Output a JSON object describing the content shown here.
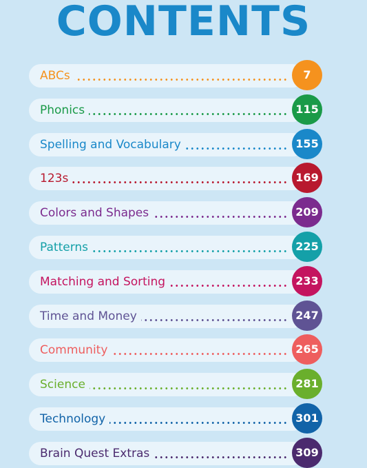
{
  "title": "CONTENTS",
  "entries": [
    {
      "label": "ABCs",
      "page": "7",
      "color": "#f5921e"
    },
    {
      "label": "Phonics",
      "page": "115",
      "color": "#1a9a48"
    },
    {
      "label": "Spelling and Vocabulary",
      "page": "155",
      "color": "#1a88c9"
    },
    {
      "label": "123s",
      "page": "169",
      "color": "#b8192e"
    },
    {
      "label": "Colors and Shapes",
      "page": "209",
      "color": "#7b2b8e"
    },
    {
      "label": "Patterns",
      "page": "225",
      "color": "#14a0a8"
    },
    {
      "label": "Matching and Sorting",
      "page": "233",
      "color": "#c4145f"
    },
    {
      "label": "Time and Money",
      "page": "247",
      "color": "#5f5394"
    },
    {
      "label": "Community",
      "page": "265",
      "color": "#ee5e5e"
    },
    {
      "label": "Science",
      "page": "281",
      "color": "#6aaf2c"
    },
    {
      "label": "Technology",
      "page": "301",
      "color": "#1163a8"
    },
    {
      "label": "Brain Quest Extras",
      "page": "309",
      "color": "#4b2a6e"
    }
  ]
}
